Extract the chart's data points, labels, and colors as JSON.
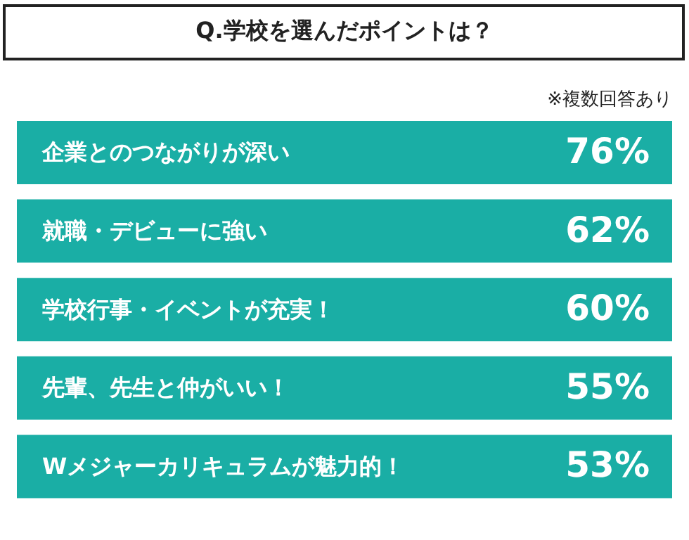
{
  "chart_data": {
    "type": "other",
    "title": "Q.学校を選んだポイントは？",
    "annotations": [
      "※複数回答あり"
    ],
    "categories": [
      "企業とのつながりが深い",
      "就職・デビューに強い",
      "学校行事・イベントが充実！",
      "先輩、先生と仲がいい！",
      "Wメジャーカリキュラムが魅力的！"
    ],
    "values": [
      76,
      62,
      60,
      55,
      53
    ],
    "value_labels": [
      "76%",
      "62%",
      "60%",
      "55%",
      "53%"
    ],
    "color": "#1aaea5"
  }
}
